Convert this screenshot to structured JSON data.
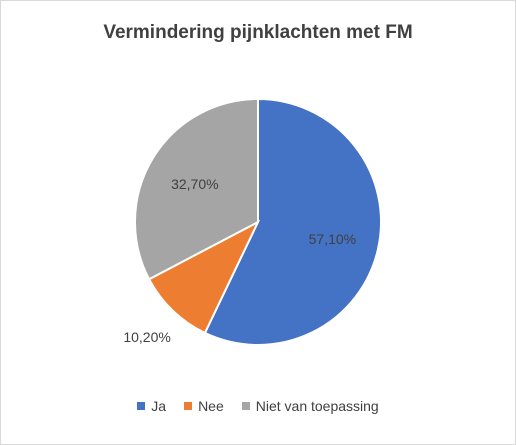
{
  "chart_data": {
    "type": "pie",
    "title": "Vermindering pijnklachten met FM",
    "slices": [
      {
        "label": "Ja",
        "value": 57.1,
        "display": "57,10%",
        "color": "#4472C4"
      },
      {
        "label": "Nee",
        "value": 10.2,
        "display": "10,20%",
        "color": "#ED7D31"
      },
      {
        "label": "Niet van toepassing",
        "value": 32.7,
        "display": "32,70%",
        "color": "#A5A5A5"
      }
    ],
    "legend_position": "bottom"
  }
}
